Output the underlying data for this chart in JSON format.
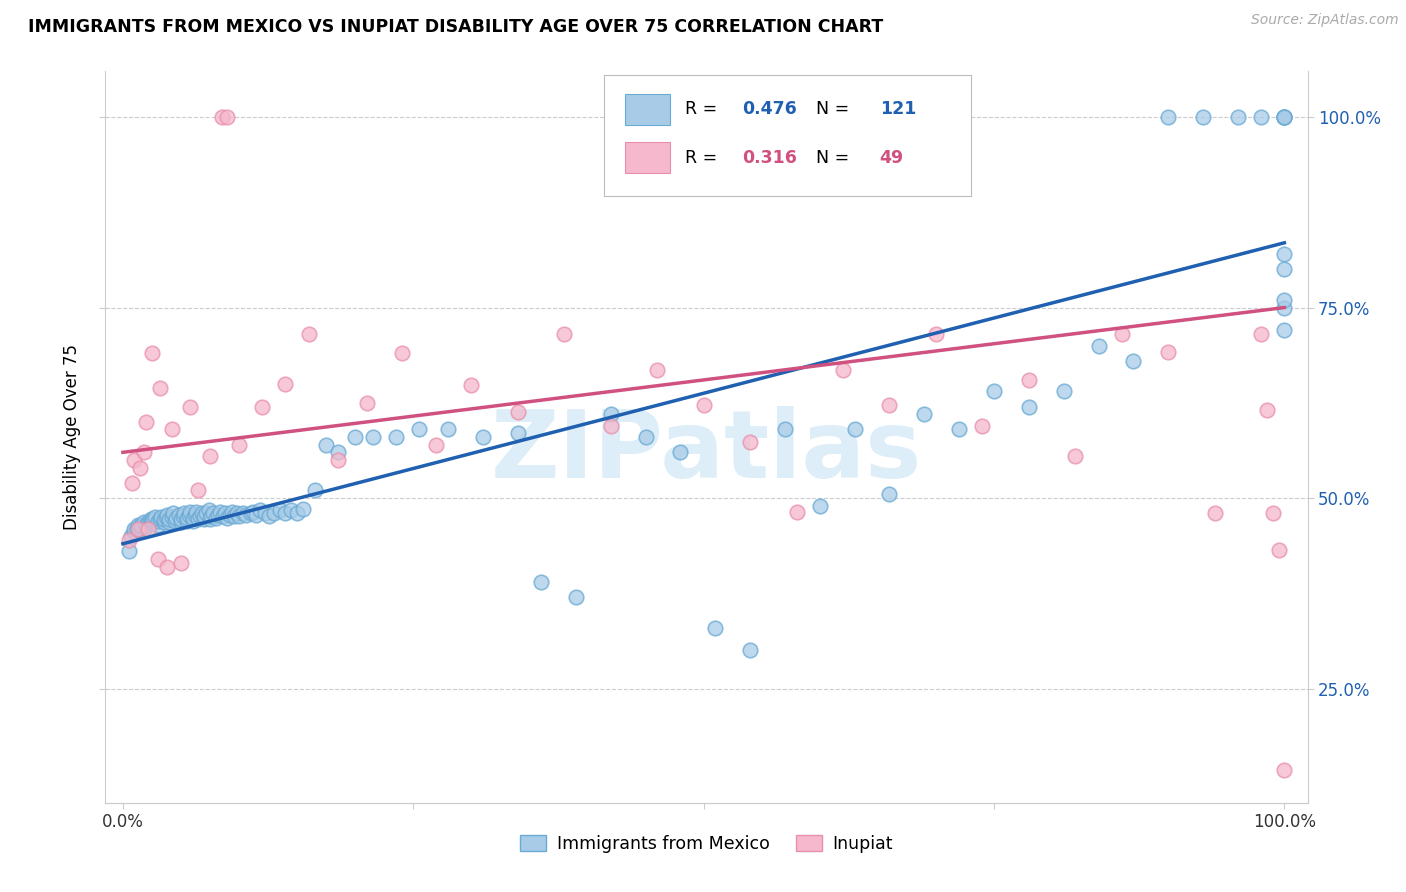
{
  "title": "IMMIGRANTS FROM MEXICO VS INUPIAT DISABILITY AGE OVER 75 CORRELATION CHART",
  "source": "Source: ZipAtlas.com",
  "ylabel": "Disability Age Over 75",
  "legend_label1": "Immigrants from Mexico",
  "legend_label2": "Inupiat",
  "r1": 0.476,
  "n1": 121,
  "r2": 0.316,
  "n2": 49,
  "blue_fill": "#a8cce8",
  "blue_edge": "#6aaad4",
  "pink_fill": "#f5b8cc",
  "pink_edge": "#e890aa",
  "blue_line_color": "#2060b0",
  "pink_line_color": "#d05080",
  "right_tick_color": "#2060b0",
  "watermark_color": "#ddeef8",
  "background": "#ffffff",
  "grid_color": "#cccccc",
  "ylim": [
    0.1,
    1.06
  ],
  "xlim": [
    -0.015,
    1.02
  ],
  "blue_x": [
    0.005,
    0.007,
    0.01,
    0.01,
    0.012,
    0.013,
    0.015,
    0.015,
    0.016,
    0.018,
    0.02,
    0.02,
    0.022,
    0.023,
    0.024,
    0.025,
    0.026,
    0.028,
    0.03,
    0.03,
    0.032,
    0.033,
    0.035,
    0.035,
    0.037,
    0.038,
    0.04,
    0.04,
    0.042,
    0.043,
    0.045,
    0.046,
    0.048,
    0.05,
    0.05,
    0.052,
    0.053,
    0.055,
    0.055,
    0.057,
    0.058,
    0.06,
    0.06,
    0.062,
    0.063,
    0.065,
    0.066,
    0.068,
    0.07,
    0.07,
    0.072,
    0.074,
    0.075,
    0.076,
    0.078,
    0.08,
    0.082,
    0.084,
    0.086,
    0.088,
    0.09,
    0.092,
    0.094,
    0.096,
    0.098,
    0.1,
    0.103,
    0.106,
    0.11,
    0.112,
    0.115,
    0.118,
    0.122,
    0.126,
    0.13,
    0.135,
    0.14,
    0.145,
    0.15,
    0.155,
    0.165,
    0.175,
    0.185,
    0.2,
    0.215,
    0.235,
    0.255,
    0.28,
    0.31,
    0.34,
    0.36,
    0.39,
    0.42,
    0.45,
    0.48,
    0.51,
    0.54,
    0.57,
    0.6,
    0.63,
    0.66,
    0.69,
    0.72,
    0.75,
    0.78,
    0.81,
    0.84,
    0.87,
    0.9,
    0.93,
    0.96,
    0.98,
    1.0,
    1.0,
    1.0,
    1.0,
    1.0,
    1.0,
    1.0,
    1.0,
    1.0
  ],
  "blue_y": [
    0.43,
    0.45,
    0.455,
    0.46,
    0.46,
    0.465,
    0.46,
    0.463,
    0.465,
    0.468,
    0.462,
    0.465,
    0.468,
    0.47,
    0.472,
    0.47,
    0.473,
    0.475,
    0.465,
    0.47,
    0.472,
    0.475,
    0.468,
    0.472,
    0.475,
    0.478,
    0.468,
    0.472,
    0.475,
    0.48,
    0.47,
    0.474,
    0.478,
    0.468,
    0.472,
    0.476,
    0.48,
    0.47,
    0.474,
    0.478,
    0.482,
    0.47,
    0.474,
    0.478,
    0.482,
    0.472,
    0.476,
    0.48,
    0.472,
    0.476,
    0.48,
    0.484,
    0.472,
    0.476,
    0.48,
    0.474,
    0.478,
    0.482,
    0.476,
    0.48,
    0.474,
    0.478,
    0.482,
    0.476,
    0.48,
    0.476,
    0.48,
    0.478,
    0.48,
    0.482,
    0.478,
    0.484,
    0.48,
    0.476,
    0.48,
    0.484,
    0.48,
    0.484,
    0.48,
    0.486,
    0.51,
    0.57,
    0.56,
    0.58,
    0.58,
    0.58,
    0.59,
    0.59,
    0.58,
    0.585,
    0.39,
    0.37,
    0.61,
    0.58,
    0.56,
    0.33,
    0.3,
    0.59,
    0.49,
    0.59,
    0.505,
    0.61,
    0.59,
    0.64,
    0.62,
    0.64,
    0.7,
    0.68,
    1.0,
    1.0,
    1.0,
    1.0,
    1.0,
    1.0,
    0.72,
    0.75,
    0.76,
    1.0,
    1.0,
    0.82,
    0.8
  ],
  "pink_x": [
    0.005,
    0.008,
    0.01,
    0.013,
    0.015,
    0.018,
    0.02,
    0.022,
    0.025,
    0.03,
    0.032,
    0.038,
    0.042,
    0.05,
    0.058,
    0.065,
    0.075,
    0.085,
    0.09,
    0.1,
    0.12,
    0.14,
    0.16,
    0.185,
    0.21,
    0.24,
    0.27,
    0.3,
    0.34,
    0.38,
    0.42,
    0.46,
    0.5,
    0.54,
    0.58,
    0.62,
    0.66,
    0.7,
    0.74,
    0.78,
    0.82,
    0.86,
    0.9,
    0.94,
    0.98,
    0.985,
    0.99,
    0.995,
    1.0
  ],
  "pink_y": [
    0.445,
    0.52,
    0.55,
    0.46,
    0.54,
    0.56,
    0.6,
    0.46,
    0.69,
    0.42,
    0.645,
    0.41,
    0.59,
    0.415,
    0.62,
    0.51,
    0.555,
    1.0,
    1.0,
    0.57,
    0.62,
    0.65,
    0.715,
    0.55,
    0.625,
    0.69,
    0.57,
    0.648,
    0.613,
    0.715,
    0.595,
    0.668,
    0.622,
    0.574,
    0.482,
    0.668,
    0.622,
    0.715,
    0.595,
    0.655,
    0.555,
    0.715,
    0.692,
    0.48,
    0.715,
    0.615,
    0.48,
    0.432,
    0.143
  ]
}
